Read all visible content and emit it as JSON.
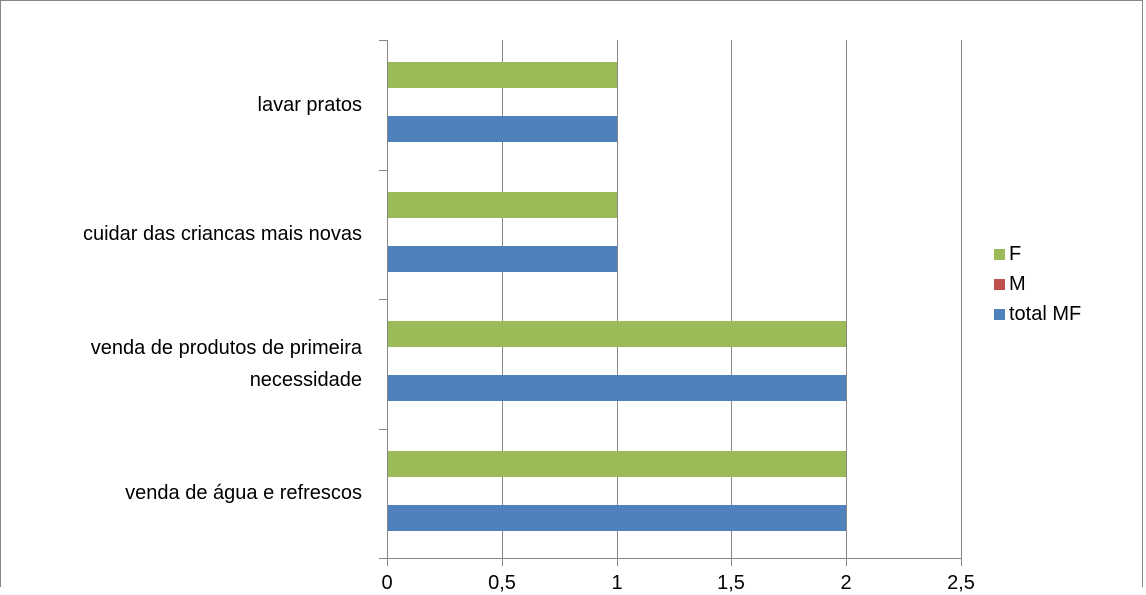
{
  "chart_data": {
    "type": "bar",
    "orientation": "horizontal",
    "categories": [
      "venda de água e refrescos",
      "venda de produtos de primeira necessidade",
      "cuidar das criancas mais novas",
      "lavar pratos"
    ],
    "series": [
      {
        "name": "total MF",
        "color": "#4F81BD",
        "values": [
          2,
          2,
          1,
          1
        ]
      },
      {
        "name": "M",
        "color": "#C0504D",
        "values": [
          0,
          0,
          0,
          0
        ]
      },
      {
        "name": "F",
        "color": "#9BBB59",
        "values": [
          2,
          2,
          1,
          1
        ]
      }
    ],
    "xlim": [
      0,
      2.5
    ],
    "x_ticks": [
      "0",
      "0,5",
      "1",
      "1,5",
      "2",
      "2,5"
    ],
    "x_tick_values": [
      0,
      0.5,
      1,
      1.5,
      2,
      2.5
    ],
    "grid": true,
    "legend_position": "right",
    "legend_order": [
      "F",
      "M",
      "total MF"
    ],
    "title": "",
    "xlabel": "",
    "ylabel": ""
  }
}
